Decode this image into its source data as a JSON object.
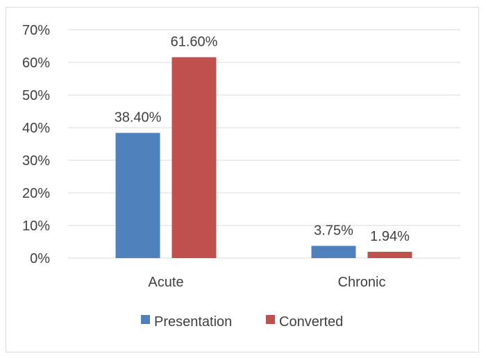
{
  "chart_data": {
    "type": "bar",
    "categories": [
      "Acute",
      "Chronic"
    ],
    "series": [
      {
        "name": "Presentation",
        "color": "#4f81bd",
        "values": [
          38.4,
          3.75
        ],
        "labels": [
          "38.40%",
          "3.75%"
        ]
      },
      {
        "name": "Converted",
        "color": "#c0504d",
        "values": [
          61.6,
          1.94
        ],
        "labels": [
          "61.60%",
          "1.94%"
        ]
      }
    ],
    "y_ticks": [
      "0%",
      "10%",
      "20%",
      "30%",
      "40%",
      "50%",
      "60%",
      "70%"
    ],
    "ylim": [
      0,
      70
    ],
    "y_unit": "%",
    "grid": true,
    "legend_position": "bottom",
    "title": "",
    "xlabel": "",
    "ylabel": ""
  }
}
